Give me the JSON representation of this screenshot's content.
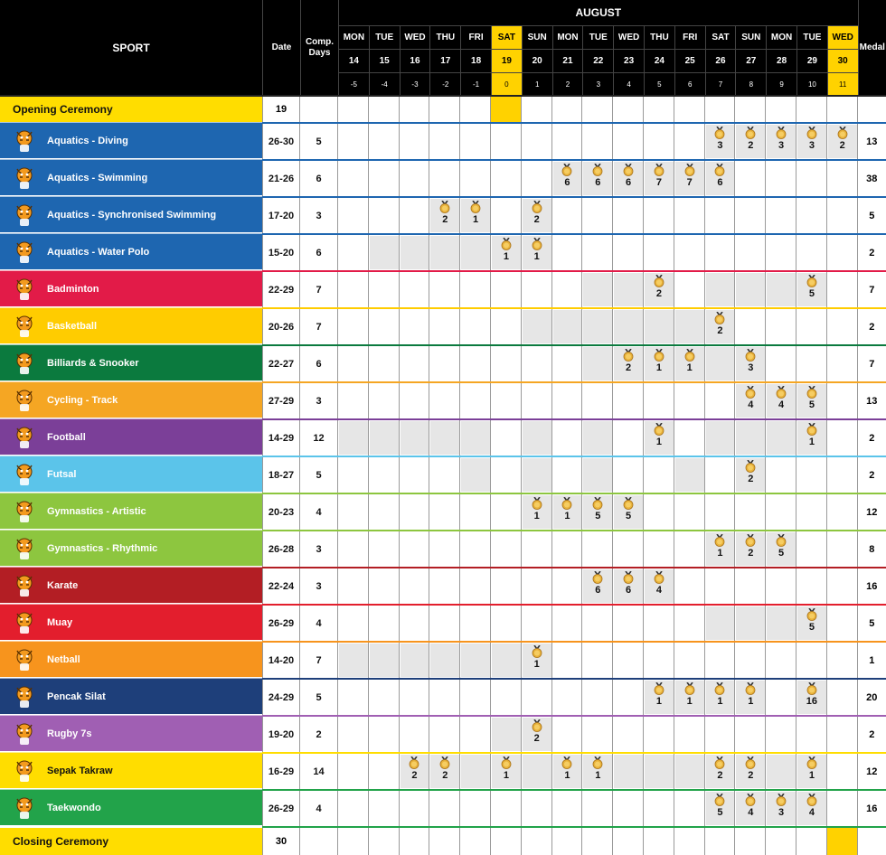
{
  "header": {
    "sport": "SPORT",
    "date": "Date",
    "comp_days": "Comp.\nDays",
    "month": "AUGUST",
    "medal": "Medal"
  },
  "days": [
    {
      "dow": "MON",
      "date": "14",
      "offset": "-5"
    },
    {
      "dow": "TUE",
      "date": "15",
      "offset": "-4"
    },
    {
      "dow": "WED",
      "date": "16",
      "offset": "-3"
    },
    {
      "dow": "THU",
      "date": "17",
      "offset": "-2"
    },
    {
      "dow": "FRI",
      "date": "18",
      "offset": "-1"
    },
    {
      "dow": "SAT",
      "date": "19",
      "offset": "0",
      "highlight": true
    },
    {
      "dow": "SUN",
      "date": "20",
      "offset": "1"
    },
    {
      "dow": "MON",
      "date": "21",
      "offset": "2"
    },
    {
      "dow": "TUE",
      "date": "22",
      "offset": "3"
    },
    {
      "dow": "WED",
      "date": "23",
      "offset": "4"
    },
    {
      "dow": "THU",
      "date": "24",
      "offset": "5"
    },
    {
      "dow": "FRI",
      "date": "25",
      "offset": "6"
    },
    {
      "dow": "SAT",
      "date": "26",
      "offset": "7"
    },
    {
      "dow": "SUN",
      "date": "27",
      "offset": "8"
    },
    {
      "dow": "MON",
      "date": "28",
      "offset": "9"
    },
    {
      "dow": "TUE",
      "date": "29",
      "offset": "10"
    },
    {
      "dow": "WED",
      "date": "30",
      "offset": "11",
      "highlight": true
    }
  ],
  "colors": {
    "ceremony": "#ffdd00",
    "highlight": "#ffd200",
    "shade": "#e6e6e6",
    "medal_gold": "#e8b23a",
    "ribbon": "#333333"
  },
  "opening": {
    "label": "Opening Ceremony",
    "date": "19",
    "highlight_day": 5
  },
  "closing": {
    "label": "Closing Ceremony",
    "date": "30",
    "highlight_day": 16
  },
  "sports": [
    {
      "name": "Aquatics - Diving",
      "date": "26-30",
      "days": "5",
      "medal": "13",
      "color": "#1e66b0",
      "line": "#1e66b0",
      "icon": "diver-mascot-icon",
      "shade": [
        12,
        13,
        14,
        15,
        16
      ],
      "medals": {
        "12": "3",
        "13": "2",
        "14": "3",
        "15": "3",
        "16": "2"
      }
    },
    {
      "name": "Aquatics - Swimming",
      "date": "21-26",
      "days": "6",
      "medal": "38",
      "color": "#1e66b0",
      "line": "#1e66b0",
      "icon": "swimmer-mascot-icon",
      "shade": [
        7,
        8,
        9,
        10,
        11,
        12
      ],
      "medals": {
        "7": "6",
        "8": "6",
        "9": "6",
        "10": "7",
        "11": "7",
        "12": "6"
      }
    },
    {
      "name": "Aquatics - Synchronised Swimming",
      "date": "17-20",
      "days": "3",
      "medal": "5",
      "color": "#1e66b0",
      "line": "#1e66b0",
      "icon": "synchro-mascot-icon",
      "shade": [
        3,
        4,
        6
      ],
      "medals": {
        "3": "2",
        "4": "1",
        "6": "2"
      }
    },
    {
      "name": "Aquatics - Water Polo",
      "date": "15-20",
      "days": "6",
      "medal": "2",
      "color": "#1e66b0",
      "line": "#1e66b0",
      "icon": "waterpolo-mascot-icon",
      "shade": [
        1,
        2,
        3,
        4,
        5,
        6
      ],
      "medals": {
        "5": "1",
        "6": "1"
      }
    },
    {
      "name": "Badminton",
      "date": "22-29",
      "days": "7",
      "medal": "7",
      "color": "#e21b48",
      "line": "#e21b48",
      "icon": "badminton-mascot-icon",
      "shade": [
        8,
        9,
        10,
        12,
        13,
        14,
        15
      ],
      "medals": {
        "10": "2",
        "15": "5"
      }
    },
    {
      "name": "Basketball",
      "date": "20-26",
      "days": "7",
      "medal": "2",
      "color": "#ffcc00",
      "line": "#ffcc00",
      "icon": "basketball-mascot-icon",
      "shade": [
        6,
        7,
        8,
        9,
        10,
        11,
        12
      ],
      "medals": {
        "12": "2"
      }
    },
    {
      "name": "Billiards & Snooker",
      "date": "22-27",
      "days": "6",
      "medal": "7",
      "color": "#0b7a3e",
      "line": "#0b7a3e",
      "icon": "billiards-mascot-icon",
      "shade": [
        8,
        9,
        10,
        11,
        12,
        13
      ],
      "medals": {
        "9": "2",
        "10": "1",
        "11": "1",
        "13": "3"
      }
    },
    {
      "name": "Cycling - Track",
      "date": "27-29",
      "days": "3",
      "medal": "13",
      "color": "#f5a623",
      "line": "#f5a623",
      "icon": "cycling-mascot-icon",
      "shade": [
        13,
        14,
        15
      ],
      "medals": {
        "13": "4",
        "14": "4",
        "15": "5"
      }
    },
    {
      "name": "Football",
      "date": "14-29",
      "days": "12",
      "medal": "2",
      "color": "#7b3f98",
      "line": "#7b3f98",
      "icon": "football-mascot-icon",
      "shade": [
        0,
        1,
        2,
        3,
        4,
        6,
        8,
        10,
        12,
        13,
        14,
        15
      ],
      "medals": {
        "10": "1",
        "15": "1"
      }
    },
    {
      "name": "Futsal",
      "date": "18-27",
      "days": "5",
      "medal": "2",
      "color": "#5bc4ea",
      "line": "#5bc4ea",
      "icon": "futsal-mascot-icon",
      "shade": [
        4,
        6,
        8,
        11,
        13
      ],
      "medals": {
        "13": "2"
      }
    },
    {
      "name": "Gymnastics - Artistic",
      "date": "20-23",
      "days": "4",
      "medal": "12",
      "color": "#8dc63f",
      "line": "#8dc63f",
      "icon": "artistic-gym-mascot-icon",
      "shade": [
        6,
        7,
        8,
        9
      ],
      "medals": {
        "6": "1",
        "7": "1",
        "8": "5",
        "9": "5"
      }
    },
    {
      "name": "Gymnastics - Rhythmic",
      "date": "26-28",
      "days": "3",
      "medal": "8",
      "color": "#8dc63f",
      "line": "#8dc63f",
      "icon": "rhythmic-gym-mascot-icon",
      "shade": [
        12,
        13,
        14
      ],
      "medals": {
        "12": "1",
        "13": "2",
        "14": "5"
      }
    },
    {
      "name": "Karate",
      "date": "22-24",
      "days": "3",
      "medal": "16",
      "color": "#b31e24",
      "line": "#b31e24",
      "icon": "karate-mascot-icon",
      "shade": [
        8,
        9,
        10
      ],
      "medals": {
        "8": "6",
        "9": "6",
        "10": "4"
      }
    },
    {
      "name": "Muay",
      "date": "26-29",
      "days": "4",
      "medal": "5",
      "color": "#e31e2d",
      "line": "#e31e2d",
      "icon": "muay-mascot-icon",
      "shade": [
        12,
        13,
        14,
        15
      ],
      "medals": {
        "15": "5"
      }
    },
    {
      "name": "Netball",
      "date": "14-20",
      "days": "7",
      "medal": "1",
      "color": "#f7941d",
      "line": "#f7941d",
      "icon": "netball-mascot-icon",
      "shade": [
        0,
        1,
        2,
        3,
        4,
        5,
        6
      ],
      "medals": {
        "6": "1"
      }
    },
    {
      "name": "Pencak Silat",
      "date": "24-29",
      "days": "5",
      "medal": "20",
      "color": "#1e3f7a",
      "line": "#1e3f7a",
      "icon": "silat-mascot-icon",
      "shade": [
        10,
        11,
        12,
        13,
        15
      ],
      "medals": {
        "10": "1",
        "11": "1",
        "12": "1",
        "13": "1",
        "15": "16"
      }
    },
    {
      "name": "Rugby 7s",
      "date": "19-20",
      "days": "2",
      "medal": "2",
      "color": "#a05fb3",
      "line": "#a05fb3",
      "icon": "rugby-mascot-icon",
      "shade": [
        5,
        6
      ],
      "medals": {
        "6": "2"
      }
    },
    {
      "name": "Sepak Takraw",
      "date": "16-29",
      "days": "14",
      "medal": "12",
      "color": "#ffdd00",
      "line": "#ffdd00",
      "icon": "sepaktakraw-mascot-icon",
      "shade": [
        2,
        3,
        4,
        5,
        6,
        7,
        8,
        9,
        10,
        11,
        12,
        13,
        14,
        15
      ],
      "medals": {
        "2": "2",
        "3": "2",
        "5": "1",
        "7": "1",
        "8": "1",
        "12": "2",
        "13": "2",
        "15": "1"
      },
      "dark_text": true
    },
    {
      "name": "Taekwondo",
      "date": "26-29",
      "days": "4",
      "medal": "16",
      "color": "#22a34a",
      "line": "#22a34a",
      "icon": "taekwondo-mascot-icon",
      "shade": [
        12,
        13,
        14,
        15
      ],
      "medals": {
        "12": "5",
        "13": "4",
        "14": "3",
        "15": "4"
      }
    }
  ]
}
